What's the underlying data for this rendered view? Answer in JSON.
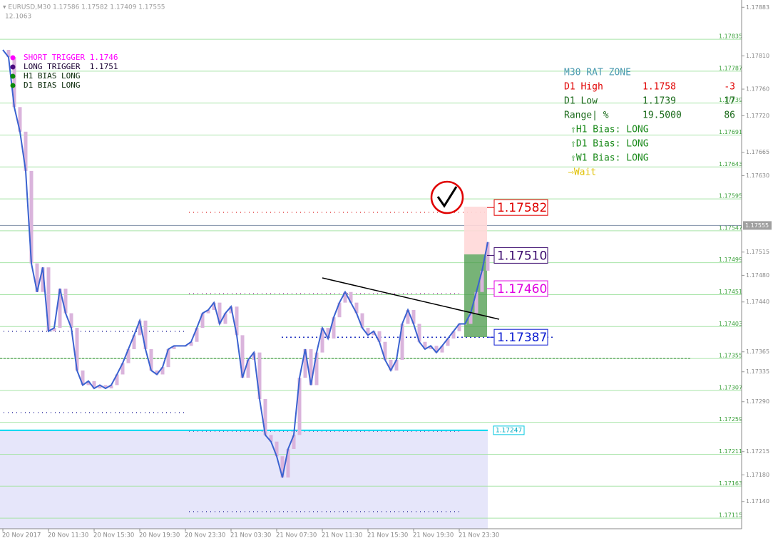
{
  "chart_data": {
    "type": "candlestick",
    "header": "▾ EURUSD,M30  1.17586 1.17582 1.17409 1.17555",
    "subheader": "12.1063",
    "categories": [
      "20 Nov 2017",
      null,
      null,
      null,
      null,
      null,
      null,
      null,
      "20 Nov 11:30",
      null,
      null,
      null,
      null,
      null,
      null,
      null,
      "20 Nov 15:30",
      null,
      null,
      null,
      null,
      null,
      null,
      null,
      "20 Nov 19:30",
      null,
      null,
      null,
      null,
      null,
      null,
      null,
      "20 Nov 23:30",
      null,
      null,
      null,
      null,
      null,
      null,
      null,
      "21 Nov 03:30",
      null,
      null,
      null,
      null,
      null,
      null,
      null,
      "21 Nov 07:30",
      null,
      null,
      null,
      null,
      null,
      null,
      null,
      "21 Nov 11:30",
      null,
      null,
      null,
      null,
      null,
      null,
      null,
      "21 Nov 15:30",
      null,
      null,
      null,
      null,
      null,
      null,
      null,
      "21 Nov 19:30",
      null,
      null,
      null,
      null,
      null,
      null,
      null,
      "21 Nov 23:30",
      null,
      null,
      null,
      null,
      null
    ],
    "values": [
      1.17819,
      1.17808,
      1.17733,
      1.17696,
      1.17637,
      1.17498,
      1.17455,
      1.17492,
      1.17396,
      1.17401,
      1.1746,
      1.17423,
      1.17401,
      1.17337,
      1.17315,
      1.17321,
      1.1731,
      1.17315,
      1.1731,
      1.17315,
      1.17331,
      1.17348,
      1.17369,
      1.1739,
      1.17412,
      1.17369,
      1.17337,
      1.17331,
      1.17342,
      1.17369,
      1.17374,
      1.17374,
      1.17374,
      1.1738,
      1.17401,
      1.17423,
      1.17428,
      1.17439,
      1.17407,
      1.17423,
      1.17433,
      1.1739,
      1.17326,
      1.17353,
      1.17364,
      1.17294,
      1.1724,
      1.1723,
      1.17208,
      1.17176,
      1.17219,
      1.1724,
      1.17326,
      1.17369,
      1.17315,
      1.17364,
      1.17401,
      1.17385,
      1.17417,
      1.17439,
      1.17455,
      1.17439,
      1.17423,
      1.17401,
      1.1739,
      1.17396,
      1.1738,
      1.17353,
      1.17337,
      1.17353,
      1.17407,
      1.17428,
      1.17407,
      1.1738,
      1.17369,
      1.17374,
      1.17364,
      1.17374,
      1.17385,
      1.17396,
      1.17407,
      1.17407,
      1.17423,
      1.17455,
      1.17487,
      1.1753
    ],
    "line_color": "#3a62d0",
    "candle_color": "#dab4dc",
    "ylim": [
      1.17099,
      1.17894
    ],
    "yticks": [
      1.17835,
      1.17787,
      1.17739,
      1.17691,
      1.17643,
      1.17595,
      1.17547,
      1.17499,
      1.17451,
      1.17403,
      1.17355,
      1.17307,
      1.17259,
      1.17211,
      1.17163,
      1.17115
    ],
    "minor_yticks": [
      1.17883,
      {
        "value": 1.1781,
        "label": "1.17810"
      },
      {
        "value": 1.1776,
        "label": "1.17760"
      },
      {
        "value": 1.1772,
        "label": "1.17720"
      },
      1.17665,
      {
        "value": 1.1763,
        "label": "1.17630"
      },
      1.17515,
      {
        "value": 1.1748,
        "label": "1.17480"
      },
      {
        "value": 1.1744,
        "label": "1.17440"
      },
      1.17365,
      1.17335,
      {
        "value": 1.1729,
        "label": "1.17290"
      },
      1.17215,
      {
        "value": 1.1718,
        "label": "1.17180"
      },
      {
        "value": 1.1714,
        "label": "1.17140"
      }
    ],
    "grid": true,
    "grid_color": "#a8e4a8",
    "current_price": 1.17555,
    "support_level": 1.17247,
    "levels": [
      {
        "value": 1.17582,
        "label": "1.17582",
        "color": "#e00000"
      },
      {
        "value": 1.1751,
        "label": "1.17510",
        "color": "#3b0a6e"
      },
      {
        "value": 1.1746,
        "label": "1.17460",
        "color": "#e000e0"
      },
      {
        "value": 1.17387,
        "label": "1.17387",
        "color": "#0a1ad0"
      }
    ],
    "legend": [
      {
        "text": "SHORT TRIGGER 1.1746",
        "dot": "#ff00ff",
        "color": "#ff00ff"
      },
      {
        "text": "LONG TRIGGER  1.1751",
        "dot": "#4b0a80",
        "color": "#1a0033"
      },
      {
        "text": "H1 BIAS LONG",
        "dot": "#0a8a0a",
        "color": "#0a2a0a"
      },
      {
        "text": "D1 BIAS LONG",
        "dot": "#0a8a0a",
        "color": "#0a2a0a"
      }
    ],
    "panel": {
      "title": "M30 RAT ZONE",
      "rows": [
        {
          "cells": [
            "D1 High",
            "1.1758",
            "-3"
          ],
          "color": "#e00000"
        },
        {
          "cells": [
            "D1 Low",
            "1.1739",
            "17"
          ],
          "color": "#1a6a1a"
        },
        {
          "cells": [
            "Range| %",
            "19.5000",
            "86"
          ],
          "color": "#1a6a1a"
        }
      ],
      "bias": [
        "⇧H1 Bias: LONG",
        "⇧D1 Bias: LONG",
        "⇧W1 Bias: LONG"
      ],
      "status": "⇨Wait"
    }
  }
}
